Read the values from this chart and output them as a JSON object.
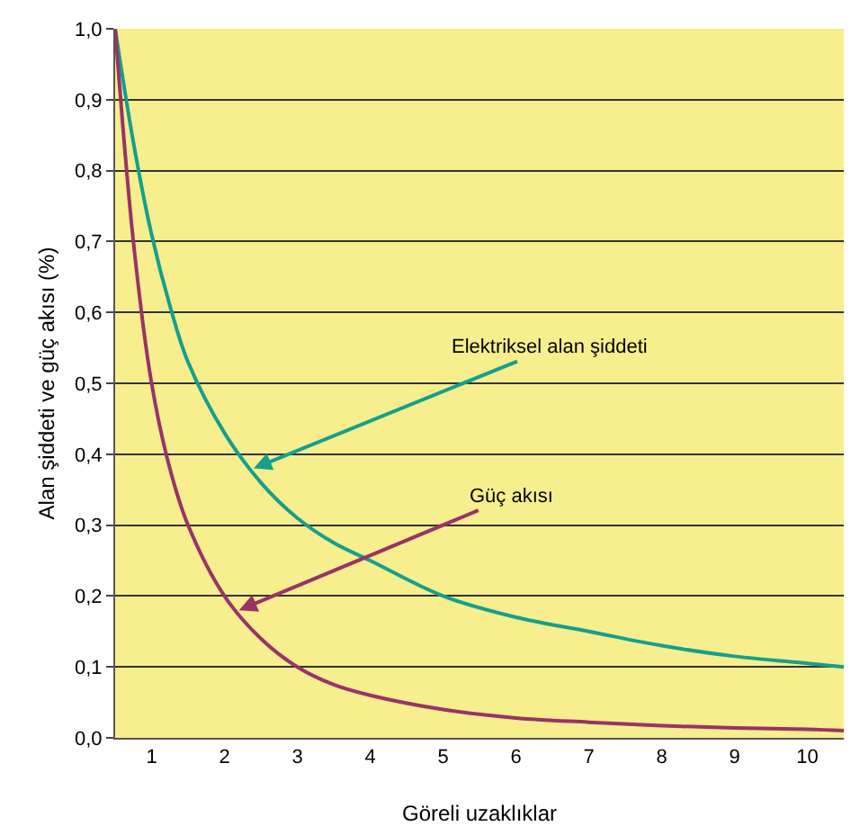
{
  "chart_data": {
    "type": "line",
    "xlabel": "Göreli uzaklıklar",
    "ylabel": "Alan şiddeti ve güç akısı (%)",
    "x": [
      0.5,
      0.75,
      1,
      1.25,
      1.5,
      2,
      2.5,
      3,
      3.5,
      4,
      5,
      6,
      7,
      8,
      9,
      10,
      10.5
    ],
    "series": [
      {
        "color": "#14a08c",
        "values": [
          1.0,
          0.84,
          0.71,
          0.61,
          0.53,
          0.43,
          0.36,
          0.31,
          0.275,
          0.25,
          0.2,
          0.17,
          0.15,
          0.13,
          0.115,
          0.105,
          0.1
        ]
      },
      {
        "color": "#993366",
        "values": [
          1.0,
          0.7,
          0.5,
          0.38,
          0.3,
          0.2,
          0.14,
          0.1,
          0.075,
          0.06,
          0.04,
          0.028,
          0.022,
          0.017,
          0.014,
          0.012,
          0.01
        ]
      }
    ],
    "xlim": [
      0.5,
      10.5
    ],
    "xticks": [
      1,
      2,
      3,
      4,
      5,
      6,
      7,
      8,
      9,
      10
    ],
    "ylim": [
      0,
      1
    ],
    "yticks": [
      {
        "value": 0,
        "label": "0,0"
      },
      {
        "value": 0.1,
        "label": "0,1"
      },
      {
        "value": 0.2,
        "label": "0,2"
      },
      {
        "value": 0.3,
        "label": "0,3"
      },
      {
        "value": 0.4,
        "label": "0,4"
      },
      {
        "value": 0.5,
        "label": "0,5"
      },
      {
        "value": 0.6,
        "label": "0,6"
      },
      {
        "value": 0.7,
        "label": "0,7"
      },
      {
        "value": 0.8,
        "label": "0,8"
      },
      {
        "value": 0.9,
        "label": "0,9"
      },
      {
        "value": 1,
        "label": "1,0"
      }
    ],
    "annotations": [
      {
        "text": "Elektriksel alan şiddeti",
        "x": 2.4,
        "y": 0.38
      },
      {
        "text": "Güç akısı",
        "x": 2.2,
        "y": 0.18
      }
    ],
    "grid": "y",
    "marker": "none",
    "line_style": "solid"
  }
}
